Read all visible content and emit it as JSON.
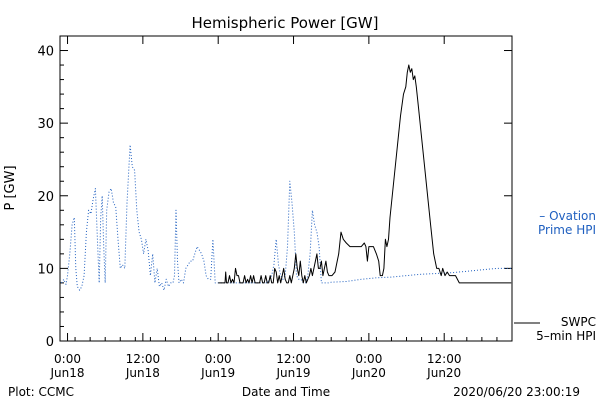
{
  "chart_data": {
    "type": "line",
    "title": "Hemispheric Power [GW]",
    "xlabel": "Date and Time",
    "ylabel": "P [GW]",
    "ylim": [
      0,
      42
    ],
    "yticks": [
      0,
      10,
      20,
      30,
      40
    ],
    "x_unit": "hours from 2020-06-18 00:00 UT",
    "xlim": [
      -1,
      59
    ],
    "xticks": [
      {
        "x": 0,
        "label": [
          "0:00",
          "Jun18"
        ]
      },
      {
        "x": 10,
        "label": [
          "12:00",
          "Jun18"
        ]
      },
      {
        "x": 20,
        "label": [
          "0:00",
          "Jun19"
        ]
      },
      {
        "x": 30,
        "label": [
          "12:00",
          "Jun19"
        ]
      },
      {
        "x": 40,
        "label": [
          "0:00",
          "Jun20"
        ]
      },
      {
        "x": 50,
        "label": [
          "12:00",
          "Jun20"
        ]
      }
    ],
    "footer_left": "Plot: CCMC",
    "footer_right": "2020/06/20 23:00:19",
    "colors": {
      "ovation": "#2060c0",
      "swpc": "#000000",
      "axis": "#000000"
    },
    "legend": [
      {
        "name": "Ovation",
        "lines": [
          "– Ovation",
          "Prime HPI"
        ],
        "color": "#2060c0",
        "style": "dotted",
        "placement": "right-middle"
      },
      {
        "name": "SWPC",
        "lines": [
          "SWPC",
          "5–min HPI"
        ],
        "color": "#000000",
        "style": "solid",
        "placement": "right-bottom"
      }
    ],
    "series": [
      {
        "name": "Ovation",
        "style": "dotted",
        "points": [
          [
            -0.8,
            8.0
          ],
          [
            -0.5,
            8.5
          ],
          [
            -0.2,
            7.8
          ],
          [
            0.0,
            9.0
          ],
          [
            0.3,
            12.0
          ],
          [
            0.6,
            16.0
          ],
          [
            0.9,
            17.0
          ],
          [
            1.1,
            10.0
          ],
          [
            1.3,
            7.5
          ],
          [
            1.6,
            7.0
          ],
          [
            1.9,
            7.5
          ],
          [
            2.2,
            9.0
          ],
          [
            2.5,
            15.0
          ],
          [
            2.8,
            18.0
          ],
          [
            3.1,
            17.5
          ],
          [
            3.4,
            19.5
          ],
          [
            3.7,
            21.0
          ],
          [
            4.0,
            13.0
          ],
          [
            4.2,
            8.0
          ],
          [
            4.4,
            17.0
          ],
          [
            4.6,
            20.0
          ],
          [
            4.8,
            13.0
          ],
          [
            5.0,
            8.0
          ],
          [
            5.2,
            18.0
          ],
          [
            5.5,
            20.5
          ],
          [
            5.8,
            21.0
          ],
          [
            6.1,
            19.0
          ],
          [
            6.4,
            18.5
          ],
          [
            6.7,
            14.0
          ],
          [
            7.0,
            10.0
          ],
          [
            7.3,
            10.5
          ],
          [
            7.6,
            10.0
          ],
          [
            7.9,
            19.0
          ],
          [
            8.3,
            27.0
          ],
          [
            8.6,
            24.0
          ],
          [
            8.9,
            23.5
          ],
          [
            9.2,
            18.0
          ],
          [
            9.5,
            15.0
          ],
          [
            9.8,
            14.0
          ],
          [
            10.1,
            12.0
          ],
          [
            10.4,
            14.0
          ],
          [
            10.7,
            12.5
          ],
          [
            11.0,
            9.0
          ],
          [
            11.3,
            12.0
          ],
          [
            11.6,
            8.0
          ],
          [
            11.9,
            10.0
          ],
          [
            12.2,
            7.5
          ],
          [
            12.5,
            8.0
          ],
          [
            12.8,
            7.0
          ],
          [
            13.1,
            8.5
          ],
          [
            13.4,
            7.5
          ],
          [
            13.7,
            8.0
          ],
          [
            14.0,
            8.0
          ],
          [
            14.2,
            9.0
          ],
          [
            14.4,
            18.0
          ],
          [
            14.6,
            11.0
          ],
          [
            14.8,
            8.0
          ],
          [
            15.1,
            8.5
          ],
          [
            15.4,
            8.0
          ],
          [
            15.7,
            10.0
          ],
          [
            16.0,
            10.5
          ],
          [
            16.3,
            11.0
          ],
          [
            16.6,
            11.0
          ],
          [
            16.9,
            12.0
          ],
          [
            17.2,
            13.0
          ],
          [
            17.5,
            12.5
          ],
          [
            17.8,
            12.0
          ],
          [
            18.1,
            11.0
          ],
          [
            18.4,
            9.0
          ],
          [
            18.7,
            8.5
          ],
          [
            19.0,
            8.5
          ],
          [
            19.3,
            14.0
          ],
          [
            19.6,
            8.0
          ],
          [
            19.9,
            8.0
          ],
          [
            20.2,
            8.0
          ],
          [
            20.5,
            8.0
          ],
          [
            20.8,
            8.0
          ],
          [
            21.1,
            8.0
          ],
          [
            21.4,
            8.0
          ],
          [
            21.7,
            8.0
          ],
          [
            22.0,
            8.0
          ],
          [
            22.3,
            8.0
          ],
          [
            22.6,
            8.0
          ],
          [
            22.9,
            8.0
          ],
          [
            23.2,
            8.0
          ],
          [
            23.5,
            8.0
          ],
          [
            23.8,
            8.0
          ],
          [
            24.1,
            8.0
          ],
          [
            24.4,
            8.0
          ],
          [
            24.7,
            8.0
          ],
          [
            25.0,
            8.0
          ],
          [
            25.3,
            8.0
          ],
          [
            25.6,
            8.0
          ],
          [
            25.9,
            8.0
          ],
          [
            26.2,
            8.0
          ],
          [
            26.5,
            8.0
          ],
          [
            26.8,
            8.5
          ],
          [
            27.1,
            9.0
          ],
          [
            27.4,
            10.5
          ],
          [
            27.7,
            14.0
          ],
          [
            28.0,
            10.5
          ],
          [
            28.3,
            9.0
          ],
          [
            28.6,
            8.5
          ],
          [
            28.9,
            9.0
          ],
          [
            29.2,
            13.0
          ],
          [
            29.5,
            22.0
          ],
          [
            29.8,
            19.0
          ],
          [
            30.1,
            15.0
          ],
          [
            30.4,
            9.0
          ],
          [
            30.7,
            8.5
          ],
          [
            31.0,
            8.5
          ],
          [
            31.3,
            8.0
          ],
          [
            31.6,
            8.0
          ],
          [
            31.9,
            9.0
          ],
          [
            32.2,
            12.0
          ],
          [
            32.5,
            18.0
          ],
          [
            32.8,
            16.0
          ],
          [
            33.1,
            15.0
          ],
          [
            33.4,
            13.0
          ],
          [
            33.7,
            8.0
          ],
          [
            34.0,
            8.0
          ],
          [
            34.3,
            8.0
          ],
          [
            34.6,
            8.0
          ],
          [
            35.0,
            8.1
          ],
          [
            37.0,
            8.2
          ],
          [
            39.0,
            8.5
          ],
          [
            41.0,
            8.7
          ],
          [
            43.0,
            8.8
          ],
          [
            45.0,
            9.0
          ],
          [
            47.0,
            9.2
          ],
          [
            49.0,
            9.3
          ],
          [
            51.0,
            9.4
          ],
          [
            53.0,
            9.6
          ],
          [
            55.0,
            9.8
          ],
          [
            57.0,
            10.0
          ],
          [
            58.9,
            10.0
          ]
        ]
      },
      {
        "name": "SWPC",
        "style": "solid",
        "points": [
          [
            20.0,
            8.0
          ],
          [
            20.3,
            8.0
          ],
          [
            20.6,
            8.0
          ],
          [
            20.9,
            8.0
          ],
          [
            21.0,
            9.5
          ],
          [
            21.1,
            8.0
          ],
          [
            21.3,
            8.0
          ],
          [
            21.5,
            9.0
          ],
          [
            21.7,
            8.0
          ],
          [
            21.9,
            8.5
          ],
          [
            22.1,
            8.0
          ],
          [
            22.3,
            10.0
          ],
          [
            22.5,
            9.0
          ],
          [
            22.7,
            9.0
          ],
          [
            22.9,
            8.0
          ],
          [
            23.1,
            8.0
          ],
          [
            23.3,
            8.0
          ],
          [
            23.5,
            9.0
          ],
          [
            23.7,
            8.0
          ],
          [
            23.9,
            8.5
          ],
          [
            24.1,
            8.0
          ],
          [
            24.3,
            9.0
          ],
          [
            24.5,
            8.0
          ],
          [
            24.7,
            9.0
          ],
          [
            24.9,
            8.0
          ],
          [
            25.1,
            8.0
          ],
          [
            25.3,
            8.0
          ],
          [
            25.5,
            8.0
          ],
          [
            25.7,
            9.0
          ],
          [
            25.9,
            8.0
          ],
          [
            26.1,
            8.0
          ],
          [
            26.3,
            9.0
          ],
          [
            26.5,
            8.0
          ],
          [
            26.7,
            8.0
          ],
          [
            26.9,
            9.0
          ],
          [
            27.1,
            8.0
          ],
          [
            27.3,
            8.0
          ],
          [
            27.5,
            10.0
          ],
          [
            27.7,
            9.5
          ],
          [
            27.9,
            8.0
          ],
          [
            28.1,
            9.0
          ],
          [
            28.3,
            8.0
          ],
          [
            28.5,
            9.0
          ],
          [
            28.7,
            10.0
          ],
          [
            28.9,
            8.5
          ],
          [
            29.1,
            8.0
          ],
          [
            29.3,
            8.0
          ],
          [
            29.5,
            9.0
          ],
          [
            29.7,
            8.0
          ],
          [
            29.9,
            9.0
          ],
          [
            30.1,
            10.0
          ],
          [
            30.3,
            12.0
          ],
          [
            30.5,
            10.0
          ],
          [
            30.7,
            9.0
          ],
          [
            30.9,
            11.0
          ],
          [
            31.1,
            9.0
          ],
          [
            31.3,
            8.0
          ],
          [
            31.5,
            9.0
          ],
          [
            31.7,
            8.0
          ],
          [
            31.9,
            8.5
          ],
          [
            32.1,
            9.0
          ],
          [
            32.3,
            10.0
          ],
          [
            32.5,
            9.0
          ],
          [
            32.7,
            10.0
          ],
          [
            32.9,
            11.0
          ],
          [
            33.1,
            12.0
          ],
          [
            33.3,
            10.0
          ],
          [
            33.5,
            10.0
          ],
          [
            33.7,
            11.0
          ],
          [
            33.9,
            9.0
          ],
          [
            34.1,
            10.0
          ],
          [
            34.3,
            11.0
          ],
          [
            34.5,
            9.5
          ],
          [
            34.7,
            9.0
          ],
          [
            34.9,
            9.0
          ],
          [
            35.1,
            9.0
          ],
          [
            35.5,
            9.5
          ],
          [
            35.8,
            11.0
          ],
          [
            36.0,
            12.0
          ],
          [
            36.3,
            15.0
          ],
          [
            36.6,
            14.0
          ],
          [
            37.0,
            13.5
          ],
          [
            37.5,
            13.0
          ],
          [
            38.0,
            13.0
          ],
          [
            38.5,
            13.0
          ],
          [
            39.0,
            13.0
          ],
          [
            39.4,
            13.5
          ],
          [
            39.6,
            13.0
          ],
          [
            39.8,
            11.0
          ],
          [
            40.0,
            13.0
          ],
          [
            40.3,
            13.0
          ],
          [
            40.6,
            13.0
          ],
          [
            41.0,
            12.0
          ],
          [
            41.3,
            11.0
          ],
          [
            41.5,
            9.0
          ],
          [
            41.8,
            9.0
          ],
          [
            42.0,
            10.0
          ],
          [
            42.2,
            14.0
          ],
          [
            42.4,
            13.0
          ],
          [
            42.6,
            14.0
          ],
          [
            42.8,
            17.0
          ],
          [
            43.0,
            19.0
          ],
          [
            43.4,
            23.0
          ],
          [
            43.8,
            27.0
          ],
          [
            44.2,
            31.0
          ],
          [
            44.6,
            34.0
          ],
          [
            44.9,
            35.0
          ],
          [
            45.1,
            37.0
          ],
          [
            45.3,
            38.0
          ],
          [
            45.5,
            37.0
          ],
          [
            45.7,
            37.5
          ],
          [
            45.9,
            36.0
          ],
          [
            46.1,
            36.5
          ],
          [
            46.3,
            35.0
          ],
          [
            46.6,
            32.0
          ],
          [
            47.0,
            28.0
          ],
          [
            47.4,
            24.0
          ],
          [
            47.8,
            20.0
          ],
          [
            48.2,
            16.0
          ],
          [
            48.6,
            12.0
          ],
          [
            49.0,
            10.0
          ],
          [
            49.3,
            10.0
          ],
          [
            49.6,
            9.0
          ],
          [
            49.8,
            10.0
          ],
          [
            50.1,
            9.0
          ],
          [
            50.4,
            9.5
          ],
          [
            50.7,
            9.0
          ],
          [
            51.0,
            9.0
          ],
          [
            51.5,
            9.0
          ],
          [
            52.0,
            8.0
          ],
          [
            55.0,
            8.0
          ],
          [
            58.9,
            8.0
          ]
        ]
      }
    ]
  }
}
